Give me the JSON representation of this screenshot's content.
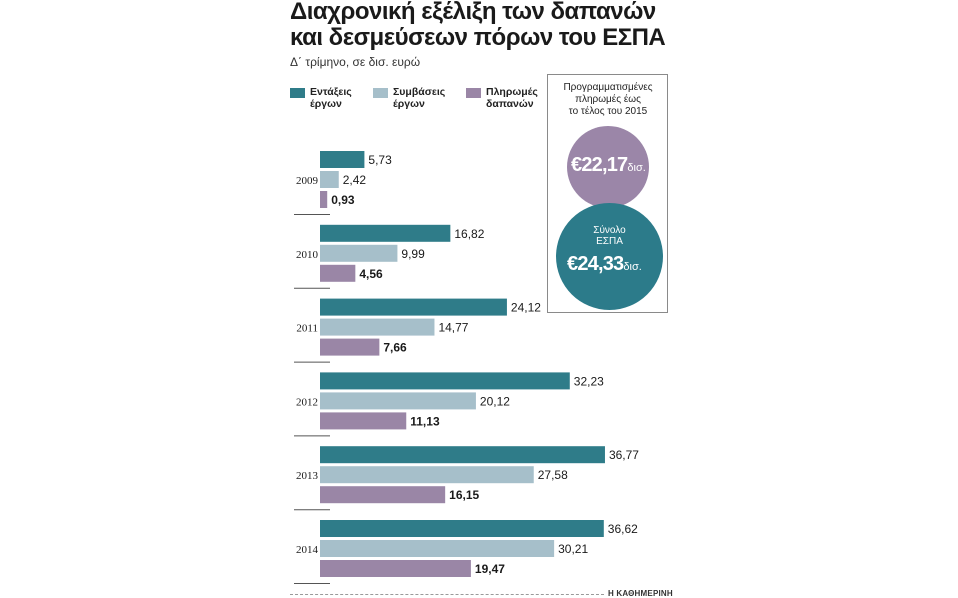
{
  "title_line1": "Διαχρονική εξέλιξη των δαπανών",
  "title_line2": "και δεσμεύσεων πόρων του ΕΣΠΑ",
  "subtitle": "Δ΄ τρίμηνο, σε δισ. ευρώ",
  "legend": [
    {
      "label": "Εντάξεις\nέργων",
      "color": "#2f7c89"
    },
    {
      "label": "Συμβάσεις\nέργων",
      "color": "#a6bfca"
    },
    {
      "label": "Πληρωμές\nδαπανών",
      "color": "#9a86a6"
    }
  ],
  "callout": {
    "text": "Προγραμματισμένες\nπληρωμές έως\nτο τέλος του 2015",
    "planned_value": "€22,17",
    "planned_unit": "δισ.",
    "total_label": "Σύνολο\nΕΣΠΑ",
    "total_value": "€24,33",
    "total_unit": "δισ."
  },
  "source": "Η ΚΑΘΗΜΕΡΙΝΗ",
  "chart_data": {
    "type": "bar",
    "orientation": "horizontal",
    "title": "Διαχρονική εξέλιξη των δαπανών και δεσμεύσεων πόρων του ΕΣΠΑ",
    "subtitle": "Δ΄ τρίμηνο, σε δισ. ευρώ",
    "categories": [
      "2009",
      "2010",
      "2011",
      "2012",
      "2013",
      "2014"
    ],
    "series": [
      {
        "name": "Εντάξεις έργων",
        "color": "#2f7c89",
        "values": [
          5.73,
          16.82,
          24.12,
          32.23,
          36.77,
          36.62
        ],
        "labels": [
          "5,73",
          "16,82",
          "24,12",
          "32,23",
          "36,77",
          "36,62"
        ],
        "bold": false
      },
      {
        "name": "Συμβάσεις έργων",
        "color": "#a6bfca",
        "values": [
          2.42,
          9.99,
          14.77,
          20.12,
          27.58,
          30.21
        ],
        "labels": [
          "2,42",
          "9,99",
          "14,77",
          "20,12",
          "27,58",
          "30,21"
        ],
        "bold": false
      },
      {
        "name": "Πληρωμές δαπανών",
        "color": "#9a86a6",
        "values": [
          0.93,
          4.56,
          7.66,
          11.13,
          16.15,
          19.47
        ],
        "labels": [
          "0,93",
          "4,56",
          "7,66",
          "11,13",
          "16,15",
          "19,47"
        ],
        "bold": true
      }
    ],
    "xlim": [
      0,
      40
    ],
    "legend_position": "top-left"
  }
}
